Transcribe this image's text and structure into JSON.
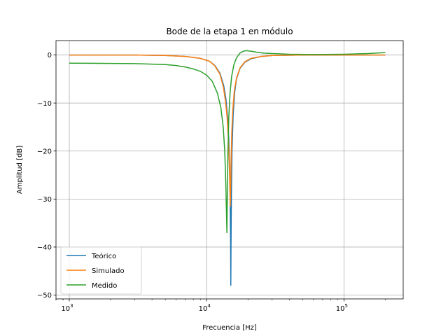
{
  "chart_data": {
    "type": "line",
    "title": "Bode de la etapa 1 en módulo",
    "xlabel": "Frecuencia [Hz]",
    "ylabel": "Amplitud [dB]",
    "xscale": "log",
    "xlim": [
      800,
      270000
    ],
    "ylim": [
      -50.8,
      3.0
    ],
    "grid": true,
    "legend_position": "lower-left",
    "x_ticks": [
      {
        "value": 1000,
        "base": "10",
        "exp": "3"
      },
      {
        "value": 10000,
        "base": "10",
        "exp": "4"
      },
      {
        "value": 100000,
        "base": "10",
        "exp": "5"
      }
    ],
    "y_ticks": [
      {
        "value": 0,
        "label": "0"
      },
      {
        "value": -10,
        "label": "−10"
      },
      {
        "value": -20,
        "label": "−20"
      },
      {
        "value": -30,
        "label": "−30"
      },
      {
        "value": -40,
        "label": "−40"
      },
      {
        "value": -50,
        "label": "−50"
      }
    ],
    "series": [
      {
        "name": "Teórico",
        "color": "#1f77b4",
        "x": [
          1000,
          3000,
          5000,
          7000,
          9000,
          10500,
          11500,
          12500,
          13300,
          13800,
          14200,
          14500,
          14700,
          14850,
          14950,
          15000,
          15050,
          15150,
          15300,
          15600,
          16000,
          16500,
          17500,
          19000,
          21000,
          25000,
          30000,
          50000,
          100000,
          200000
        ],
        "y": [
          0,
          0,
          -0.1,
          -0.3,
          -0.7,
          -1.3,
          -2.2,
          -3.8,
          -6.3,
          -9.0,
          -12.8,
          -17.5,
          -23.0,
          -30.5,
          -40.0,
          -48.0,
          -40.0,
          -29.0,
          -20.0,
          -12.5,
          -7.8,
          -5.0,
          -2.8,
          -1.5,
          -0.8,
          -0.3,
          -0.1,
          0,
          0,
          0
        ]
      },
      {
        "name": "Simulado",
        "color": "#ff7f0e",
        "x": [
          1000,
          3000,
          5000,
          7000,
          9000,
          10500,
          11500,
          12500,
          13200,
          13700,
          14100,
          14400,
          14600,
          14750,
          14850,
          14950,
          15050,
          15250,
          15500,
          15900,
          16500,
          17500,
          19000,
          21000,
          25000,
          30000,
          50000,
          100000,
          200000
        ],
        "y": [
          0,
          0,
          -0.1,
          -0.3,
          -0.7,
          -1.3,
          -2.3,
          -4.0,
          -6.5,
          -9.5,
          -13.0,
          -17.5,
          -22.0,
          -27.0,
          -31.5,
          -28.0,
          -23.0,
          -16.0,
          -11.5,
          -7.5,
          -4.8,
          -2.7,
          -1.4,
          -0.7,
          -0.3,
          -0.1,
          0,
          0,
          0
        ]
      },
      {
        "name": "Medido",
        "color": "#2ca02c",
        "x": [
          1000,
          2000,
          3000,
          4000,
          5000,
          6000,
          7000,
          8000,
          9000,
          10000,
          11000,
          12000,
          12700,
          13200,
          13550,
          13800,
          13950,
          14050,
          14150,
          14300,
          14500,
          14800,
          15200,
          15800,
          16500,
          17500,
          18500,
          19500,
          21000,
          23000,
          26000,
          30000,
          40000,
          60000,
          100000,
          150000,
          200000
        ],
        "y": [
          -1.7,
          -1.75,
          -1.8,
          -1.9,
          -2.0,
          -2.2,
          -2.5,
          -2.9,
          -3.4,
          -4.2,
          -5.5,
          -8.0,
          -11.0,
          -15.0,
          -20.0,
          -27.0,
          -33.0,
          -37.0,
          -29.0,
          -20.0,
          -13.0,
          -8.0,
          -4.5,
          -2.0,
          -0.6,
          0.4,
          0.8,
          0.9,
          0.8,
          0.6,
          0.4,
          0.3,
          0.15,
          0.1,
          0.15,
          0.3,
          0.5
        ]
      }
    ]
  }
}
